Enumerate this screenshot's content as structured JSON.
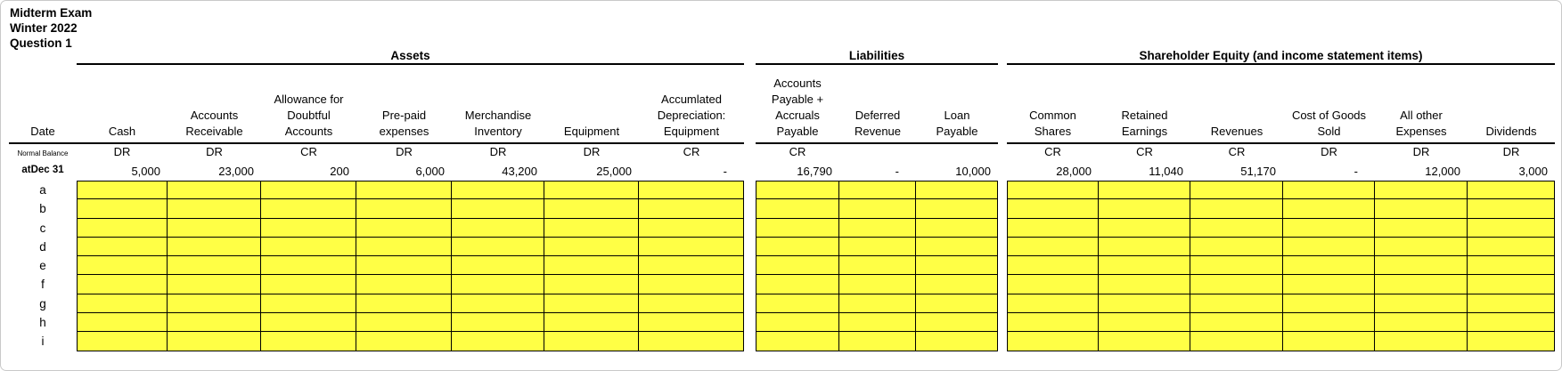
{
  "title": {
    "line1": "Midterm Exam",
    "line2": "Winter 2022",
    "line3": "Question 1"
  },
  "groups": [
    {
      "label": "Assets"
    },
    {
      "label": "Liabilities"
    },
    {
      "label": "Shareholder Equity (and income statement items)"
    }
  ],
  "table": {
    "date_header": "Date",
    "normal_balance_label": "Normal Balance",
    "opening_row_label": "atDec 31",
    "columns": [
      {
        "group": 0,
        "header_lines": [
          "Cash"
        ],
        "normal_balance": "DR",
        "opening": "5,000"
      },
      {
        "group": 0,
        "header_lines": [
          "Accounts",
          "Receivable"
        ],
        "normal_balance": "DR",
        "opening": "23,000"
      },
      {
        "group": 0,
        "header_lines": [
          "Allowance for",
          "Doubtful",
          "Accounts"
        ],
        "normal_balance": "CR",
        "opening": "200"
      },
      {
        "group": 0,
        "header_lines": [
          "Pre-paid",
          "expenses"
        ],
        "normal_balance": "DR",
        "opening": "6,000"
      },
      {
        "group": 0,
        "header_lines": [
          "Merchandise",
          "Inventory"
        ],
        "normal_balance": "DR",
        "opening": "43,200"
      },
      {
        "group": 0,
        "header_lines": [
          "Equipment"
        ],
        "normal_balance": "DR",
        "opening": "25,000"
      },
      {
        "group": 0,
        "header_lines": [
          "Accumlated",
          "Depreciation:",
          "Equipment"
        ],
        "normal_balance": "CR",
        "opening": "-"
      },
      {
        "group": 1,
        "header_lines": [
          "Accounts",
          "Payable +",
          "Accruals",
          "Payable"
        ],
        "normal_balance": "CR",
        "opening": "16,790"
      },
      {
        "group": 1,
        "header_lines": [
          "Deferred",
          "Revenue"
        ],
        "normal_balance": "",
        "opening": "-"
      },
      {
        "group": 1,
        "header_lines": [
          "Loan",
          "Payable"
        ],
        "normal_balance": "",
        "opening": "10,000"
      },
      {
        "group": 2,
        "header_lines": [
          "Common",
          "Shares"
        ],
        "normal_balance": "CR",
        "opening": "28,000"
      },
      {
        "group": 2,
        "header_lines": [
          "Retained",
          "Earnings"
        ],
        "normal_balance": "CR",
        "opening": "11,040"
      },
      {
        "group": 2,
        "header_lines": [
          "Revenues"
        ],
        "normal_balance": "CR",
        "opening": "51,170"
      },
      {
        "group": 2,
        "header_lines": [
          "Cost of Goods",
          "Sold"
        ],
        "normal_balance": "DR",
        "opening": "-"
      },
      {
        "group": 2,
        "header_lines": [
          "All other",
          "Expenses"
        ],
        "normal_balance": "DR",
        "opening": "12,000"
      },
      {
        "group": 2,
        "header_lines": [
          "Dividends"
        ],
        "normal_balance": "DR",
        "opening": "3,000"
      }
    ],
    "entry_rows": [
      "a",
      "b",
      "c",
      "d",
      "e",
      "f",
      "g",
      "h",
      "i"
    ]
  },
  "colors": {
    "highlight": "#FFFF45",
    "rule": "#000000"
  }
}
